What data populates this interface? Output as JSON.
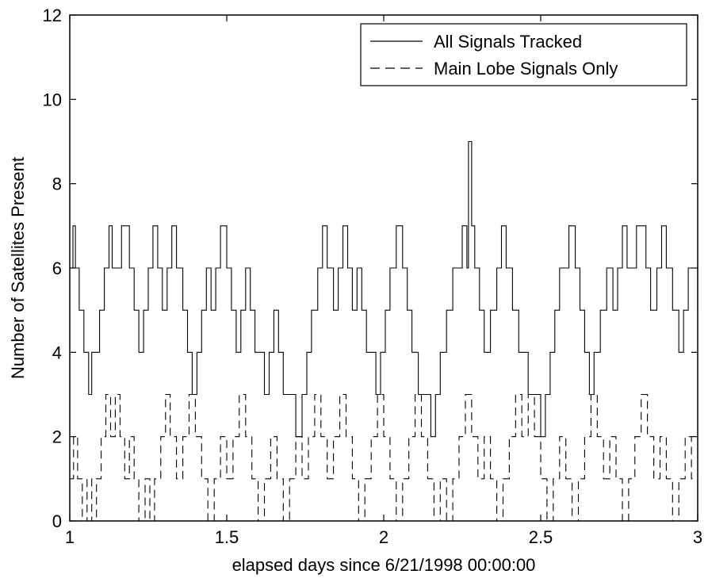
{
  "chart_data": {
    "type": "line",
    "title": "",
    "xlabel": "elapsed days since 6/21/1998 00:00:00",
    "ylabel": "Number of Satellites Present",
    "xlim": [
      1,
      3
    ],
    "ylim": [
      0,
      12
    ],
    "xticks": [
      1,
      1.5,
      2,
      2.5,
      3
    ],
    "xtick_labels": [
      "1",
      "1.5",
      "2",
      "2.5",
      "3"
    ],
    "yticks": [
      0,
      2,
      4,
      6,
      8,
      10,
      12
    ],
    "ytick_labels": [
      "0",
      "2",
      "4",
      "6",
      "8",
      "10",
      "12"
    ],
    "grid": false,
    "legend_position": "top-right",
    "colors": {
      "line": "#000000",
      "frame": "#000000",
      "background": "#ffffff"
    },
    "series": [
      {
        "name": "All Signals Tracked",
        "style": "solid",
        "x": [
          1.0,
          1.01,
          1.018,
          1.03,
          1.045,
          1.06,
          1.07,
          1.08,
          1.095,
          1.11,
          1.125,
          1.135,
          1.15,
          1.165,
          1.18,
          1.19,
          1.205,
          1.22,
          1.235,
          1.25,
          1.265,
          1.28,
          1.295,
          1.31,
          1.325,
          1.34,
          1.36,
          1.375,
          1.39,
          1.405,
          1.42,
          1.435,
          1.45,
          1.465,
          1.48,
          1.5,
          1.515,
          1.53,
          1.545,
          1.56,
          1.575,
          1.59,
          1.605,
          1.62,
          1.635,
          1.65,
          1.665,
          1.68,
          1.7,
          1.72,
          1.74,
          1.755,
          1.77,
          1.79,
          1.805,
          1.82,
          1.84,
          1.855,
          1.87,
          1.885,
          1.9,
          1.915,
          1.93,
          1.945,
          1.96,
          1.975,
          1.99,
          2.005,
          2.02,
          2.04,
          2.06,
          2.075,
          2.09,
          2.11,
          2.13,
          2.15,
          2.165,
          2.18,
          2.2,
          2.22,
          2.235,
          2.25,
          2.265,
          2.27,
          2.28,
          2.29,
          2.305,
          2.32,
          2.34,
          2.36,
          2.375,
          2.39,
          2.41,
          2.43,
          2.445,
          2.46,
          2.48,
          2.5,
          2.515,
          2.53,
          2.545,
          2.56,
          2.575,
          2.59,
          2.61,
          2.625,
          2.64,
          2.655,
          2.67,
          2.69,
          2.71,
          2.73,
          2.745,
          2.76,
          2.775,
          2.79,
          2.805,
          2.82,
          2.835,
          2.85,
          2.87,
          2.885,
          2.9,
          2.92,
          2.94,
          2.955,
          2.97,
          2.985,
          3.0
        ],
        "y": [
          6,
          7,
          6,
          5,
          4,
          3,
          4,
          4,
          5,
          6,
          7,
          6,
          6,
          7,
          7,
          6,
          5,
          4,
          5,
          6,
          7,
          6,
          5,
          6,
          7,
          6,
          5,
          4,
          3,
          4,
          5,
          6,
          5,
          6,
          7,
          6,
          5,
          4,
          5,
          6,
          5,
          4,
          4,
          3,
          4,
          5,
          4,
          3,
          3,
          2,
          3,
          4,
          5,
          6,
          7,
          6,
          5,
          6,
          7,
          6,
          5,
          6,
          5,
          4,
          4,
          3,
          4,
          5,
          6,
          7,
          6,
          5,
          4,
          3,
          3,
          2,
          3,
          4,
          5,
          6,
          6,
          7,
          6,
          9,
          7,
          6,
          5,
          4,
          5,
          6,
          7,
          6,
          5,
          4,
          4,
          3,
          3,
          2,
          3,
          4,
          5,
          6,
          6,
          7,
          6,
          5,
          4,
          3,
          4,
          5,
          6,
          5,
          6,
          7,
          6,
          6,
          7,
          7,
          6,
          5,
          6,
          7,
          6,
          5,
          4,
          5,
          6,
          6,
          5
        ]
      },
      {
        "name": "Main Lobe Signals Only",
        "style": "dashed",
        "x": [
          1.0,
          1.012,
          1.025,
          1.04,
          1.055,
          1.07,
          1.085,
          1.1,
          1.115,
          1.13,
          1.145,
          1.16,
          1.175,
          1.19,
          1.205,
          1.22,
          1.24,
          1.255,
          1.27,
          1.29,
          1.305,
          1.32,
          1.34,
          1.36,
          1.38,
          1.4,
          1.42,
          1.44,
          1.46,
          1.48,
          1.5,
          1.52,
          1.54,
          1.56,
          1.58,
          1.6,
          1.62,
          1.64,
          1.66,
          1.68,
          1.7,
          1.72,
          1.74,
          1.76,
          1.78,
          1.8,
          1.82,
          1.84,
          1.86,
          1.88,
          1.9,
          1.92,
          1.94,
          1.96,
          1.98,
          2.0,
          2.02,
          2.04,
          2.06,
          2.08,
          2.1,
          2.12,
          2.14,
          2.16,
          2.18,
          2.2,
          2.22,
          2.24,
          2.26,
          2.28,
          2.3,
          2.32,
          2.34,
          2.36,
          2.38,
          2.4,
          2.42,
          2.44,
          2.46,
          2.48,
          2.5,
          2.52,
          2.54,
          2.56,
          2.58,
          2.6,
          2.62,
          2.64,
          2.66,
          2.68,
          2.7,
          2.72,
          2.74,
          2.76,
          2.78,
          2.8,
          2.82,
          2.84,
          2.86,
          2.88,
          2.9,
          2.92,
          2.94,
          2.96,
          2.98,
          3.0
        ],
        "y": [
          1,
          2,
          1,
          0,
          1,
          0,
          1,
          2,
          3,
          2,
          3,
          2,
          1,
          2,
          1,
          0,
          1,
          0,
          1,
          2,
          3,
          2,
          1,
          2,
          3,
          2,
          1,
          0,
          1,
          2,
          1,
          2,
          3,
          2,
          1,
          0,
          1,
          2,
          1,
          0,
          1,
          2,
          1,
          2,
          3,
          2,
          1,
          2,
          3,
          2,
          1,
          0,
          1,
          2,
          3,
          2,
          1,
          0,
          1,
          2,
          3,
          2,
          1,
          0,
          1,
          0,
          1,
          2,
          3,
          2,
          1,
          2,
          1,
          0,
          1,
          2,
          3,
          2,
          3,
          2,
          1,
          0,
          1,
          2,
          1,
          0,
          1,
          2,
          3,
          2,
          1,
          2,
          1,
          0,
          1,
          2,
          3,
          2,
          1,
          2,
          1,
          0,
          1,
          2,
          1,
          0
        ]
      }
    ]
  }
}
